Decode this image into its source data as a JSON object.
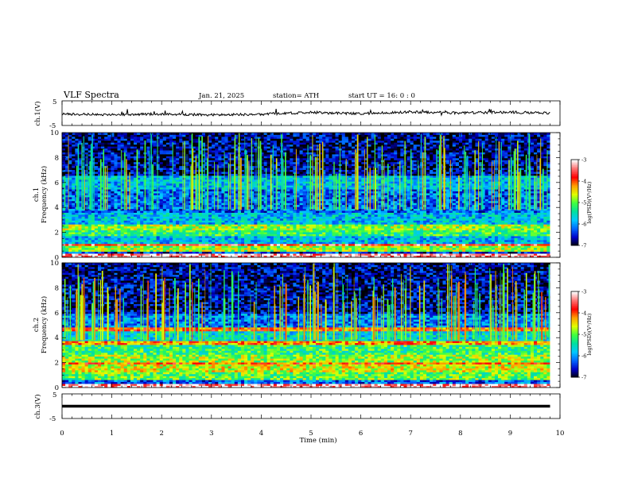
{
  "header": {
    "title": "VLF Spectra",
    "date": "Jan. 21, 2025",
    "station": "station= ATH",
    "start_ut": "start  UT  =   16: 0  : 0"
  },
  "chart_data": [
    {
      "type": "line",
      "name": "ch.1 waveform",
      "ylabel": "ch.1(V)",
      "ylim": [
        -5,
        5
      ],
      "y_ticks": [
        "5",
        "-5"
      ],
      "xlim": [
        0,
        10
      ],
      "line_color": "#000000",
      "x_min": [
        0,
        1,
        2,
        3,
        4,
        5,
        6,
        7,
        8,
        9,
        9.8
      ],
      "y_V": [
        -0.4,
        -0.6,
        -0.3,
        -0.7,
        -0.4,
        0.3,
        -0.2,
        0.5,
        0.1,
        0.4,
        0.0
      ]
    },
    {
      "type": "heatmap",
      "name": "ch.1 spectrogram",
      "ylabel_line1": "ch.1",
      "ylabel_line2": "Frequency  (kHz)",
      "ylim": [
        0,
        10
      ],
      "y_ticks": [
        "0",
        "2",
        "4",
        "6",
        "8",
        "10"
      ],
      "xlim": [
        0,
        10
      ],
      "data_end_min": 9.8,
      "colorbar": {
        "label": "log(PSD)(V²/Hz)",
        "range": [
          -7,
          -3
        ],
        "ticks": [
          "-3",
          "-4",
          "-5",
          "-6",
          "-7"
        ],
        "colors": [
          "#000000",
          "#0000c8",
          "#0066ff",
          "#00c8ff",
          "#00e0a0",
          "#40ff40",
          "#e0ff00",
          "#ffa000",
          "#ff0000",
          "#ff7070",
          "#ffffff"
        ]
      },
      "bands_khz": [
        {
          "f_low": 0.0,
          "f_high": 0.25,
          "level": 0.95
        },
        {
          "f_low": 0.25,
          "f_high": 0.5,
          "level": 0.15
        },
        {
          "f_low": 0.5,
          "f_high": 0.9,
          "level": 0.55
        },
        {
          "f_low": 0.9,
          "f_high": 1.1,
          "level": 0.85
        },
        {
          "f_low": 1.1,
          "f_high": 1.7,
          "level": 0.3
        },
        {
          "f_low": 1.7,
          "f_high": 2.2,
          "level": 0.45
        },
        {
          "f_low": 2.2,
          "f_high": 2.6,
          "level": 0.55
        },
        {
          "f_low": 2.6,
          "f_high": 3.6,
          "level": 0.3
        },
        {
          "f_low": 3.6,
          "f_high": 5.5,
          "level": 0.2
        },
        {
          "f_low": 5.5,
          "f_high": 6.5,
          "level": 0.3
        },
        {
          "f_low": 6.5,
          "f_high": 10.0,
          "level": 0.08
        }
      ],
      "sferic_level": 0.5
    },
    {
      "type": "heatmap",
      "name": "ch.2 spectrogram",
      "ylabel_line1": "ch.2",
      "ylabel_line2": "Frequency  (kHz)",
      "ylim": [
        0,
        10
      ],
      "y_ticks": [
        "0",
        "2",
        "4",
        "6",
        "8",
        "10"
      ],
      "xlim": [
        0,
        10
      ],
      "data_end_min": 9.8,
      "colorbar": {
        "label": "log(PSD)(V²/Hz)",
        "range": [
          -7,
          -3
        ],
        "ticks": [
          "-3",
          "-4",
          "-5",
          "-6",
          "-7"
        ],
        "colors": [
          "#000000",
          "#0000c8",
          "#0066ff",
          "#00c8ff",
          "#00e0a0",
          "#40ff40",
          "#e0ff00",
          "#ffa000",
          "#ff0000",
          "#ff7070",
          "#ffffff"
        ]
      },
      "bands_khz": [
        {
          "f_low": 0.0,
          "f_high": 0.25,
          "level": 0.95
        },
        {
          "f_low": 0.25,
          "f_high": 0.6,
          "level": 0.2
        },
        {
          "f_low": 0.6,
          "f_high": 1.2,
          "level": 0.5
        },
        {
          "f_low": 1.2,
          "f_high": 1.8,
          "level": 0.6
        },
        {
          "f_low": 1.8,
          "f_high": 2.1,
          "level": 0.75
        },
        {
          "f_low": 2.1,
          "f_high": 2.6,
          "level": 0.55
        },
        {
          "f_low": 2.6,
          "f_high": 3.4,
          "level": 0.45
        },
        {
          "f_low": 3.4,
          "f_high": 3.7,
          "level": 0.7
        },
        {
          "f_low": 3.7,
          "f_high": 4.5,
          "level": 0.35
        },
        {
          "f_low": 4.5,
          "f_high": 4.8,
          "level": 0.75
        },
        {
          "f_low": 4.8,
          "f_high": 6.0,
          "level": 0.22
        },
        {
          "f_low": 6.0,
          "f_high": 10.0,
          "level": 0.08
        }
      ],
      "sferic_level": 0.55
    },
    {
      "type": "line",
      "name": "ch.3 waveform",
      "ylabel": "ch.3(V)",
      "ylim": [
        -5,
        5
      ],
      "y_ticks": [
        "5",
        "-5"
      ],
      "xlim": [
        0,
        10
      ],
      "line_color": "#000000",
      "x_min": [
        0,
        9.8
      ],
      "y_V": [
        0.0,
        0.0
      ]
    }
  ],
  "x_axis": {
    "label": "Time  (min)",
    "ticks": [
      "0",
      "1",
      "2",
      "3",
      "4",
      "5",
      "6",
      "7",
      "8",
      "9",
      "10"
    ],
    "range": [
      0,
      10
    ]
  }
}
